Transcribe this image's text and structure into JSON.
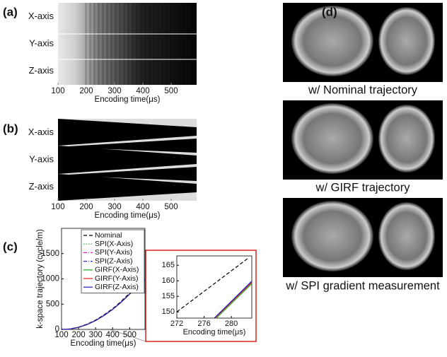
{
  "panels": {
    "a": {
      "label": "(a)",
      "rows": [
        "X-axis",
        "Y-axis",
        "Z-axis"
      ],
      "xlim": [
        100,
        590
      ],
      "xticks": [
        100,
        200,
        300,
        400,
        500
      ],
      "xlabel": "Encoding time(μs)"
    },
    "b": {
      "label": "(b)",
      "rows": [
        "X-axis",
        "Y-axis",
        "Z-axis"
      ],
      "xlim": [
        100,
        590
      ],
      "xticks": [
        100,
        200,
        300,
        400,
        500
      ],
      "xlabel": "Encoding time(μs)"
    },
    "d": {
      "label": "(d)",
      "captions": [
        "w/ Nominal trajectory",
        "w/ GIRF trajectory",
        "w/ SPI gradient measurement"
      ]
    }
  },
  "chart_data": [
    {
      "type": "line",
      "panel_label": "(c)",
      "xlabel": "Encoding time(μs)",
      "ylabel": "k-space trajectory (cycle/m)",
      "xlim": [
        100,
        590
      ],
      "ylim": [
        0,
        2000
      ],
      "xticks": [
        100,
        200,
        300,
        400,
        500
      ],
      "yticks": [
        0,
        500,
        1000,
        1500
      ],
      "legend": "upper left",
      "x": [
        100,
        150,
        200,
        250,
        300,
        350,
        400,
        450,
        500,
        550,
        590
      ],
      "series": [
        {
          "name": "Nominal",
          "color": "#000000",
          "linestyle": "dashed",
          "values": [
            0,
            10,
            45,
            105,
            185,
            290,
            410,
            555,
            720,
            900,
            1000
          ]
        },
        {
          "name": "SPI(X-Axis)",
          "color": "#33aa33",
          "linestyle": "dotted",
          "values": [
            0,
            8,
            40,
            97,
            175,
            277,
            396,
            538,
            700,
            878,
            978
          ]
        },
        {
          "name": "SPI(Y-Axis)",
          "color": "#dd22cc",
          "linestyle": "dashdot",
          "values": [
            0,
            8,
            40,
            98,
            176,
            278,
            397,
            539,
            701,
            879,
            979
          ]
        },
        {
          "name": "SPI(Z-Axis)",
          "color": "#2233cc",
          "linestyle": "dashdot",
          "values": [
            0,
            8,
            41,
            98,
            176,
            278,
            397,
            540,
            702,
            880,
            980
          ]
        },
        {
          "name": "GIRF(X-Axis)",
          "color": "#22aa22",
          "linestyle": "solid",
          "values": [
            0,
            8,
            40,
            97,
            175,
            276,
            395,
            537,
            699,
            877,
            977
          ]
        },
        {
          "name": "GIRF(Y-Axis)",
          "color": "#dd2222",
          "linestyle": "solid",
          "values": [
            0,
            8,
            40,
            97,
            175,
            277,
            396,
            538,
            700,
            878,
            978
          ]
        },
        {
          "name": "GIRF(Z-Axis)",
          "color": "#2222bb",
          "linestyle": "solid",
          "values": [
            0,
            8,
            41,
            98,
            176,
            278,
            397,
            539,
            701,
            879,
            979
          ]
        }
      ]
    },
    {
      "type": "line",
      "xlabel": "Encoding time(μs)",
      "xlim": [
        272,
        283
      ],
      "ylim": [
        148,
        168
      ],
      "xticks": [
        272,
        276,
        280
      ],
      "yticks": [
        150,
        155,
        160,
        165
      ],
      "series": [
        {
          "color": "#000000",
          "linestyle": "dashed",
          "x": [
            272,
            282.6
          ],
          "values": [
            150,
            167.5
          ]
        },
        {
          "color": "#33aa33",
          "linestyle": "dotted",
          "x": [
            277.7,
            283
          ],
          "values": [
            148,
            159.3
          ]
        },
        {
          "color": "#dd22cc",
          "linestyle": "dashdot",
          "x": [
            277.6,
            283
          ],
          "values": [
            148,
            159.6
          ]
        },
        {
          "color": "#2233cc",
          "linestyle": "dashdot",
          "x": [
            277.5,
            283
          ],
          "values": [
            148,
            159.8
          ]
        },
        {
          "color": "#22aa22",
          "linestyle": "solid",
          "x": [
            277.8,
            283
          ],
          "values": [
            148,
            159.1
          ]
        },
        {
          "color": "#dd2222",
          "linestyle": "solid",
          "x": [
            277.6,
            283
          ],
          "values": [
            148,
            159.5
          ]
        },
        {
          "color": "#2222bb",
          "linestyle": "solid",
          "x": [
            277.5,
            283
          ],
          "values": [
            148,
            159.9
          ]
        }
      ]
    }
  ]
}
